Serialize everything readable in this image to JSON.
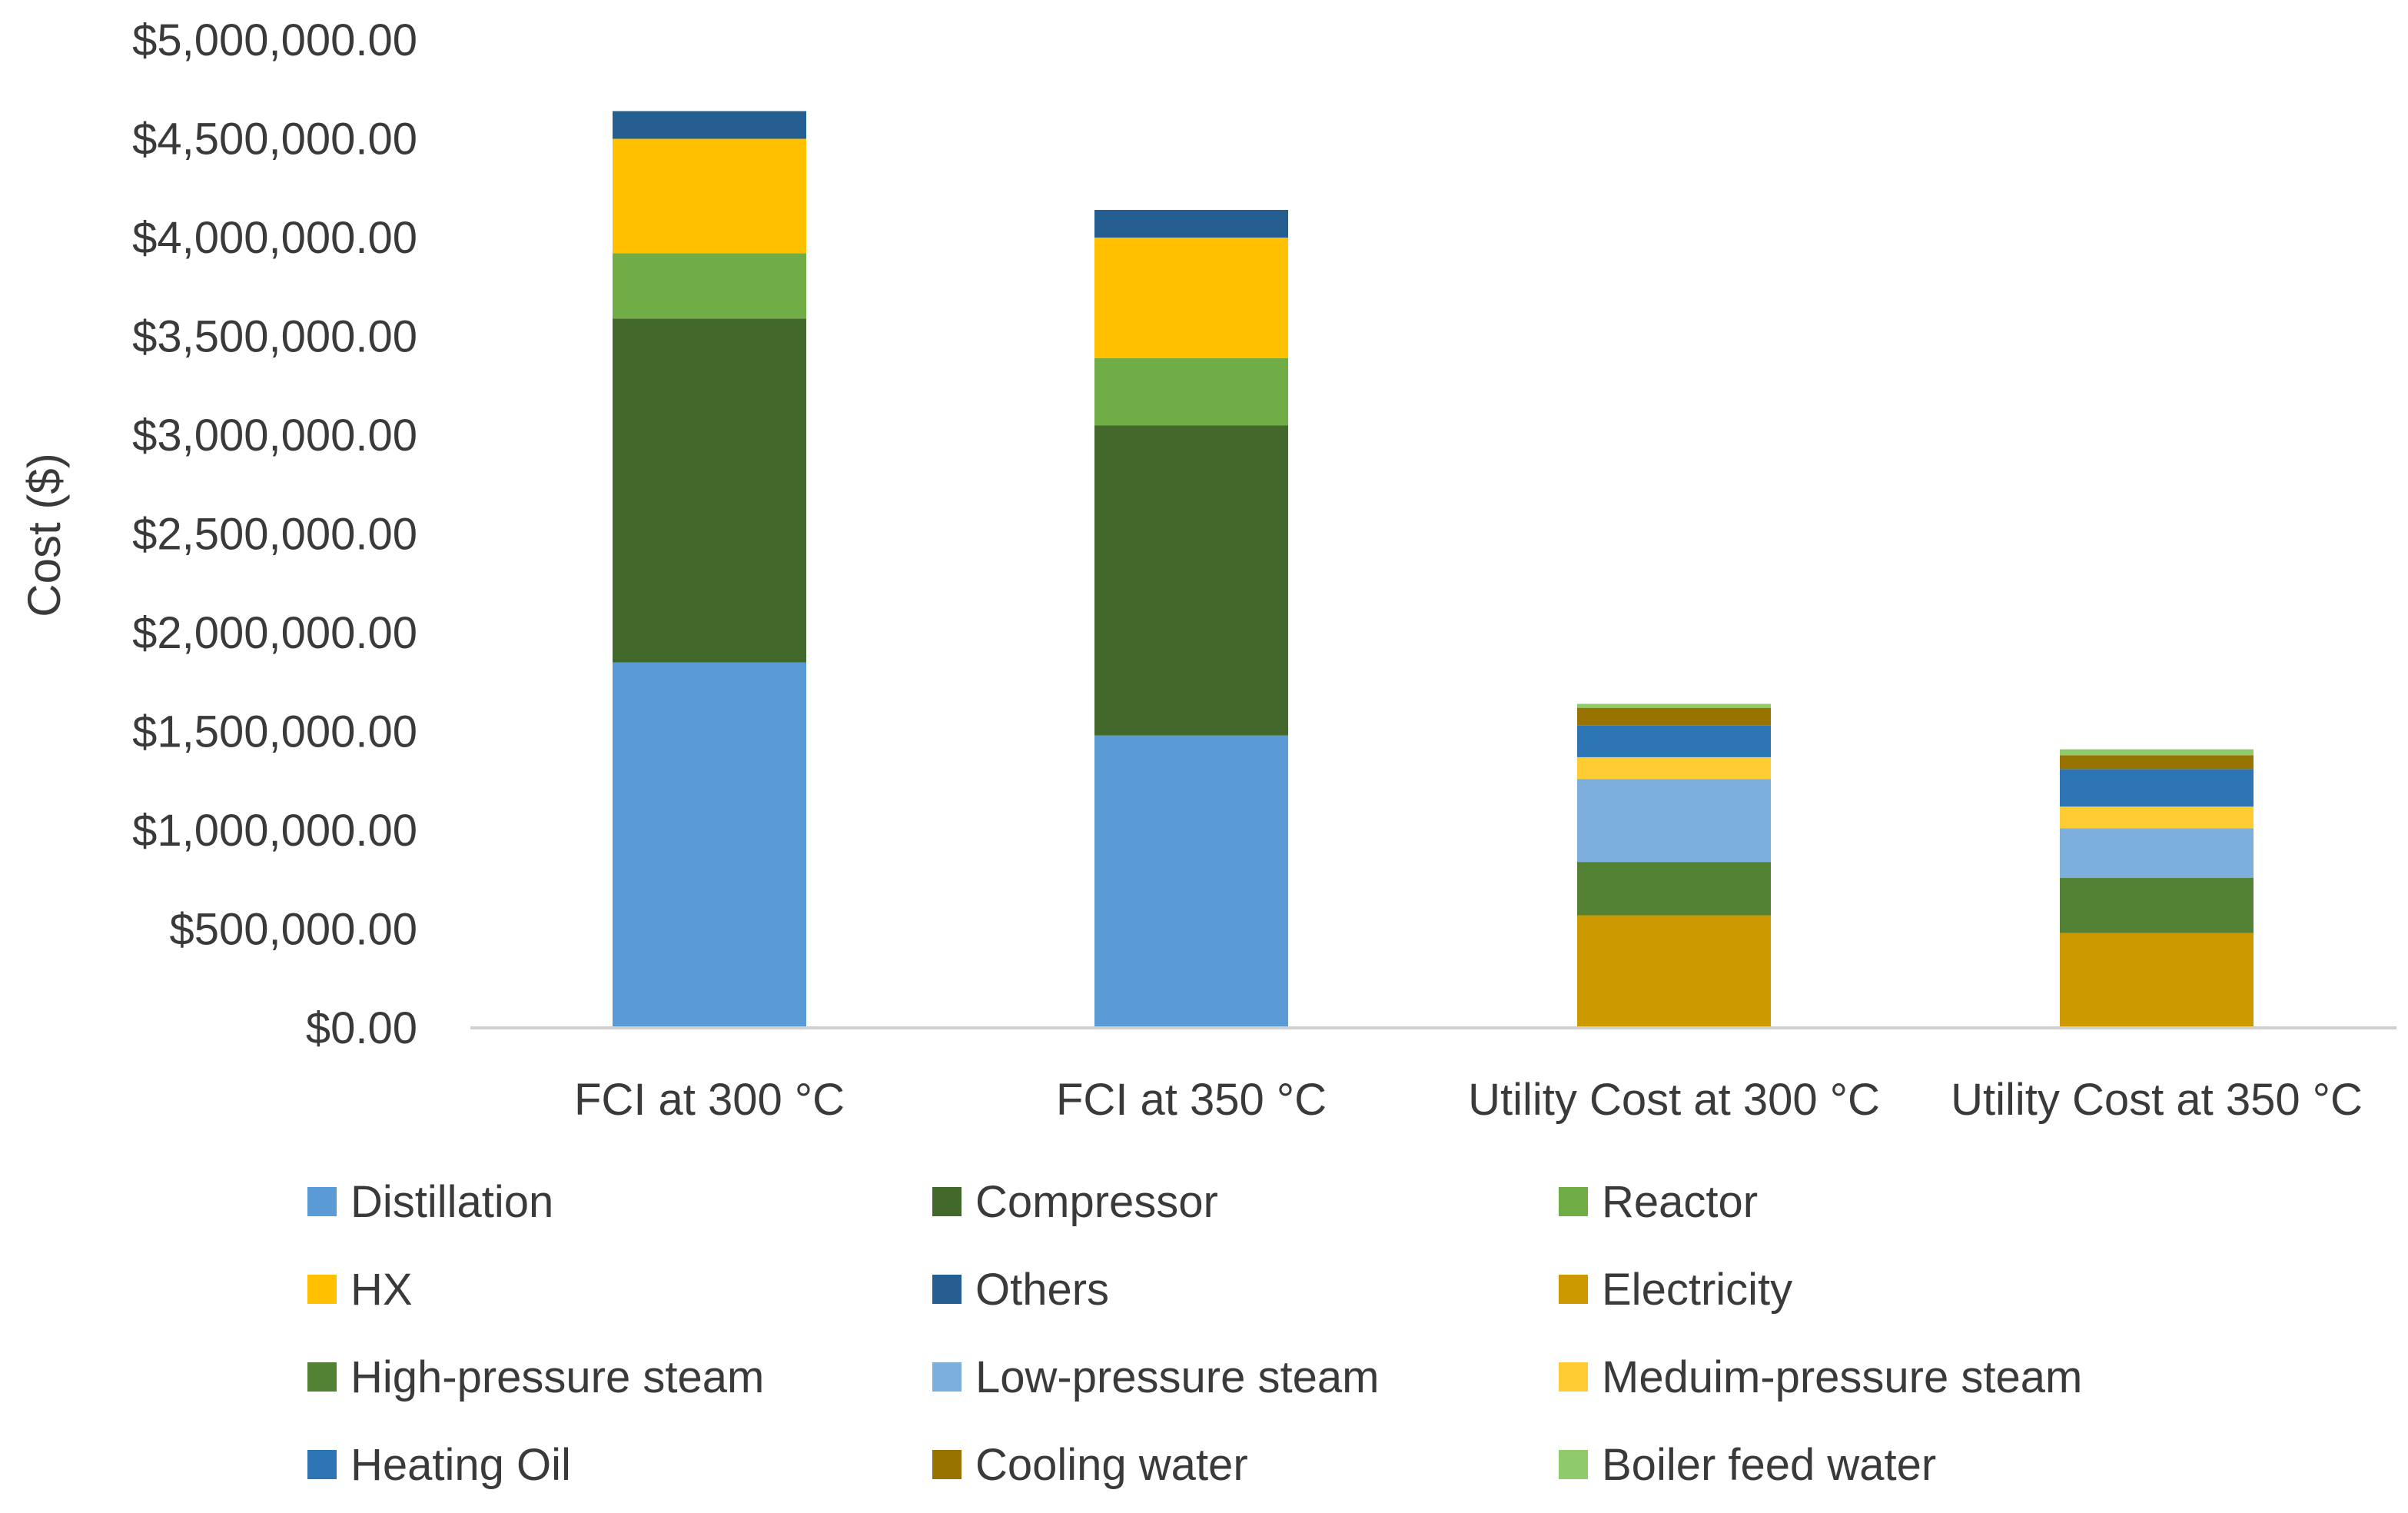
{
  "chart_data": {
    "type": "bar",
    "stacked": true,
    "title": "",
    "xlabel": "",
    "ylabel": "Cost ($)",
    "ylim": [
      0,
      5000000
    ],
    "yticks": [
      0,
      500000,
      1000000,
      1500000,
      2000000,
      2500000,
      3000000,
      3500000,
      4000000,
      4500000,
      5000000
    ],
    "ytick_labels": [
      "$0.00",
      "$500,000.00",
      "$1,000,000.00",
      "$1,500,000.00",
      "$2,000,000.00",
      "$2,500,000.00",
      "$3,000,000.00",
      "$3,500,000.00",
      "$4,000,000.00",
      "$4,500,000.00",
      "$5,000,000.00"
    ],
    "grid": false,
    "legend_position": "bottom",
    "categories": [
      "FCI at 300 °C",
      "FCI at 350 °C",
      "Utility Cost at 300 °C",
      "Utility Cost at 350 °C"
    ],
    "series": [
      {
        "name": "Distillation",
        "color": "#5B9BD5",
        "values": [
          1850000,
          1480000,
          0,
          0
        ]
      },
      {
        "name": "Compressor",
        "color": "#43682B",
        "values": [
          1740000,
          1570000,
          0,
          0
        ]
      },
      {
        "name": "Reactor",
        "color": "#70AD47",
        "values": [
          330000,
          340000,
          0,
          0
        ]
      },
      {
        "name": "HX",
        "color": "#FFC000",
        "values": [
          580000,
          610000,
          0,
          0
        ]
      },
      {
        "name": "Others",
        "color": "#255E91",
        "values": [
          140000,
          140000,
          0,
          0
        ]
      },
      {
        "name": "Electricity",
        "color": "#CC9900",
        "values": [
          0,
          0,
          570000,
          480000
        ]
      },
      {
        "name": "High-pressure steam",
        "color": "#548235",
        "values": [
          0,
          0,
          270000,
          280000
        ]
      },
      {
        "name": "Low-pressure steam",
        "color": "#7DAFDD",
        "values": [
          0,
          0,
          420000,
          250000
        ]
      },
      {
        "name": "Meduim-pressure steam",
        "color": "#FFCD33",
        "values": [
          0,
          0,
          110000,
          110000
        ]
      },
      {
        "name": "Heating Oil",
        "color": "#2E75B6",
        "values": [
          0,
          0,
          160000,
          190000
        ]
      },
      {
        "name": "Cooling water",
        "color": "#997300",
        "values": [
          0,
          0,
          90000,
          70000
        ]
      },
      {
        "name": "Boiler feed water",
        "color": "#8FCB6A",
        "values": [
          0,
          0,
          20000,
          30000
        ]
      }
    ]
  }
}
